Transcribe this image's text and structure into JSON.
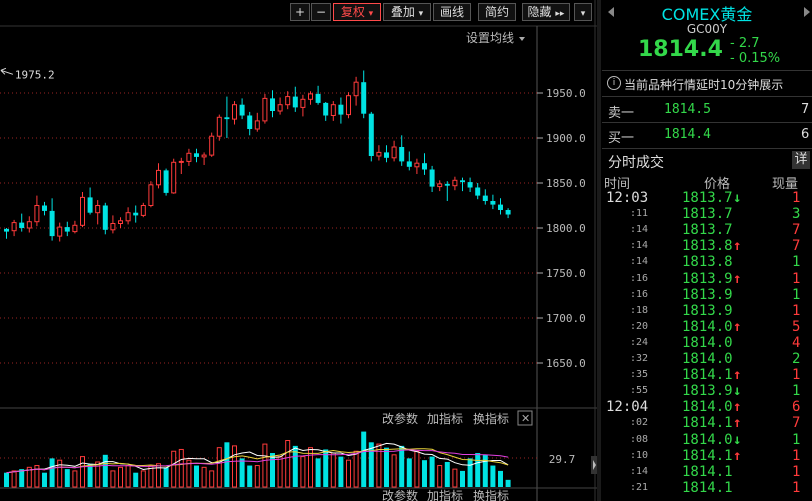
{
  "toolbar": {
    "plus": "+",
    "minus": "−",
    "fuquan": "复权",
    "diejia": "叠加",
    "huaxian": "画线",
    "jianyue": "简约",
    "yincang": "隐藏",
    "expand": "▸▸",
    "collapse": "▾"
  },
  "chart_header": {
    "settings": "设置均线"
  },
  "volume_header": {
    "a": "改参数",
    "b": "加指标",
    "c": "换指标",
    "close": "✕"
  },
  "bottom_header": {
    "a": "改参数",
    "b": "加指标",
    "c": "换指标"
  },
  "chart_data": {
    "type": "candlestick",
    "ylim": [
      1600,
      2000
    ],
    "yticks": [
      1950.0,
      1900.0,
      1850.0,
      1800.0,
      1750.0,
      1700.0,
      1650.0
    ],
    "annotation": {
      "text": "1975.2",
      "value": 1975.2
    },
    "candles": [
      [
        1799,
        1800,
        1788,
        1796
      ],
      [
        1797,
        1809,
        1791,
        1806
      ],
      [
        1806,
        1816,
        1796,
        1800
      ],
      [
        1800,
        1813,
        1795,
        1807
      ],
      [
        1807,
        1836,
        1802,
        1825
      ],
      [
        1825,
        1829,
        1814,
        1819
      ],
      [
        1819,
        1833,
        1786,
        1791
      ],
      [
        1791,
        1806,
        1785,
        1801
      ],
      [
        1801,
        1807,
        1791,
        1796
      ],
      [
        1796,
        1808,
        1794,
        1803
      ],
      [
        1803,
        1840,
        1801,
        1834
      ],
      [
        1834,
        1845,
        1815,
        1817
      ],
      [
        1817,
        1831,
        1804,
        1825
      ],
      [
        1825,
        1828,
        1793,
        1798
      ],
      [
        1798,
        1814,
        1794,
        1805
      ],
      [
        1805,
        1812,
        1800,
        1808
      ],
      [
        1808,
        1823,
        1804,
        1817
      ],
      [
        1817,
        1825,
        1806,
        1814
      ],
      [
        1814,
        1828,
        1812,
        1825
      ],
      [
        1825,
        1852,
        1823,
        1848
      ],
      [
        1848,
        1872,
        1844,
        1864
      ],
      [
        1864,
        1866,
        1836,
        1839
      ],
      [
        1839,
        1877,
        1838,
        1873
      ],
      [
        1873,
        1878,
        1860,
        1874
      ],
      [
        1874,
        1888,
        1869,
        1883
      ],
      [
        1883,
        1888,
        1873,
        1879
      ],
      [
        1879,
        1884,
        1870,
        1881
      ],
      [
        1881,
        1906,
        1879,
        1902
      ],
      [
        1902,
        1926,
        1897,
        1923
      ],
      [
        1923,
        1946,
        1900,
        1921
      ],
      [
        1921,
        1941,
        1915,
        1937
      ],
      [
        1937,
        1944,
        1921,
        1925
      ],
      [
        1925,
        1929,
        1903,
        1910
      ],
      [
        1910,
        1928,
        1907,
        1919
      ],
      [
        1919,
        1949,
        1916,
        1944
      ],
      [
        1944,
        1953,
        1923,
        1930
      ],
      [
        1930,
        1945,
        1926,
        1937
      ],
      [
        1937,
        1952,
        1932,
        1946
      ],
      [
        1946,
        1957,
        1929,
        1934
      ],
      [
        1934,
        1948,
        1924,
        1943
      ],
      [
        1943,
        1952,
        1937,
        1949
      ],
      [
        1949,
        1958,
        1937,
        1939
      ],
      [
        1939,
        1940,
        1919,
        1925
      ],
      [
        1925,
        1941,
        1919,
        1937
      ],
      [
        1937,
        1945,
        1916,
        1926
      ],
      [
        1926,
        1951,
        1922,
        1947
      ],
      [
        1947,
        1968,
        1936,
        1962
      ],
      [
        1962,
        1975,
        1922,
        1927
      ],
      [
        1927,
        1929,
        1874,
        1880
      ],
      [
        1880,
        1892,
        1875,
        1884
      ],
      [
        1884,
        1892,
        1873,
        1878
      ],
      [
        1878,
        1897,
        1874,
        1890
      ],
      [
        1890,
        1903,
        1869,
        1874
      ],
      [
        1874,
        1885,
        1864,
        1868
      ],
      [
        1868,
        1877,
        1860,
        1872
      ],
      [
        1872,
        1883,
        1859,
        1865
      ],
      [
        1865,
        1869,
        1840,
        1846
      ],
      [
        1846,
        1853,
        1841,
        1849
      ],
      [
        1849,
        1852,
        1830,
        1847
      ],
      [
        1847,
        1857,
        1842,
        1853
      ],
      [
        1853,
        1856,
        1841,
        1851
      ],
      [
        1851,
        1856,
        1840,
        1845
      ],
      [
        1845,
        1850,
        1832,
        1836
      ],
      [
        1836,
        1843,
        1826,
        1830
      ],
      [
        1830,
        1837,
        1821,
        1826
      ],
      [
        1826,
        1833,
        1815,
        1820
      ],
      [
        1820,
        1822,
        1811,
        1815
      ]
    ],
    "volume": {
      "label": "29.7",
      "ylim": [
        0,
        33
      ],
      "values": [
        8,
        9,
        10,
        11,
        12,
        8,
        16,
        15,
        10,
        9,
        17,
        13,
        14,
        18,
        9,
        11,
        12,
        8,
        9,
        12,
        13,
        11,
        20,
        21,
        15,
        12,
        11,
        9,
        22,
        25,
        23,
        16,
        12,
        12,
        24,
        19,
        17,
        26,
        23,
        17,
        22,
        16,
        21,
        19,
        17,
        15,
        20,
        31,
        25,
        24,
        22,
        18,
        23,
        16,
        20,
        15,
        17,
        12,
        14,
        10,
        9,
        16,
        19,
        18,
        12,
        9,
        4
      ]
    }
  },
  "quote": {
    "name": "COMEX黄金",
    "code": "GC00Y",
    "price": "1814.4",
    "change": "- 2.7",
    "change_pct": "- 0.15%",
    "notice_icon": "i",
    "notice": "当前品种行情延时10分钟展示",
    "sell_label": "卖一",
    "sell_price": "1814.5",
    "sell_vol": "7",
    "buy_label": "买一",
    "buy_price": "1814.4",
    "buy_vol": "6",
    "colors": {
      "accent": "#00e3e3",
      "up": "#ff3b3b",
      "down": "#33d84a",
      "price_up": "#ff4a4a"
    }
  },
  "ticks_panel": {
    "title": "分时成交",
    "detail": "详",
    "headers": {
      "time": "时间",
      "price": "价格",
      "vol": "现量"
    },
    "rows": [
      {
        "time": "12:03",
        "price": "1813.7",
        "dir": "down",
        "vol": "1",
        "vc": "up",
        "big": true
      },
      {
        "time": ":11",
        "price": "1813.7",
        "dir": "",
        "vol": "3",
        "vc": "down"
      },
      {
        "time": ":14",
        "price": "1813.7",
        "dir": "",
        "vol": "7",
        "vc": "up"
      },
      {
        "time": ":14",
        "price": "1813.8",
        "dir": "up",
        "vol": "7",
        "vc": "up"
      },
      {
        "time": ":14",
        "price": "1813.8",
        "dir": "",
        "vol": "1",
        "vc": "down"
      },
      {
        "time": ":16",
        "price": "1813.9",
        "dir": "up",
        "vol": "1",
        "vc": "up"
      },
      {
        "time": ":16",
        "price": "1813.9",
        "dir": "",
        "vol": "1",
        "vc": "down"
      },
      {
        "time": ":18",
        "price": "1813.9",
        "dir": "",
        "vol": "1",
        "vc": "up"
      },
      {
        "time": ":20",
        "price": "1814.0",
        "dir": "up",
        "vol": "5",
        "vc": "up"
      },
      {
        "time": ":24",
        "price": "1814.0",
        "dir": "",
        "vol": "4",
        "vc": "up"
      },
      {
        "time": ":32",
        "price": "1814.0",
        "dir": "",
        "vol": "2",
        "vc": "down"
      },
      {
        "time": ":35",
        "price": "1814.1",
        "dir": "up",
        "vol": "1",
        "vc": "up"
      },
      {
        "time": ":55",
        "price": "1813.9",
        "dir": "down",
        "vol": "1",
        "vc": "down"
      },
      {
        "time": "12:04",
        "price": "1814.0",
        "dir": "up",
        "vol": "6",
        "vc": "up",
        "big": true
      },
      {
        "time": ":02",
        "price": "1814.1",
        "dir": "up",
        "vol": "7",
        "vc": "up"
      },
      {
        "time": ":08",
        "price": "1814.0",
        "dir": "down",
        "vol": "1",
        "vc": "down"
      },
      {
        "time": ":10",
        "price": "1814.1",
        "dir": "up",
        "vol": "1",
        "vc": "up"
      },
      {
        "time": ":14",
        "price": "1814.1",
        "dir": "",
        "vol": "1",
        "vc": "up"
      },
      {
        "time": ":21",
        "price": "1814.1",
        "dir": "",
        "vol": "1",
        "vc": "up"
      }
    ]
  }
}
